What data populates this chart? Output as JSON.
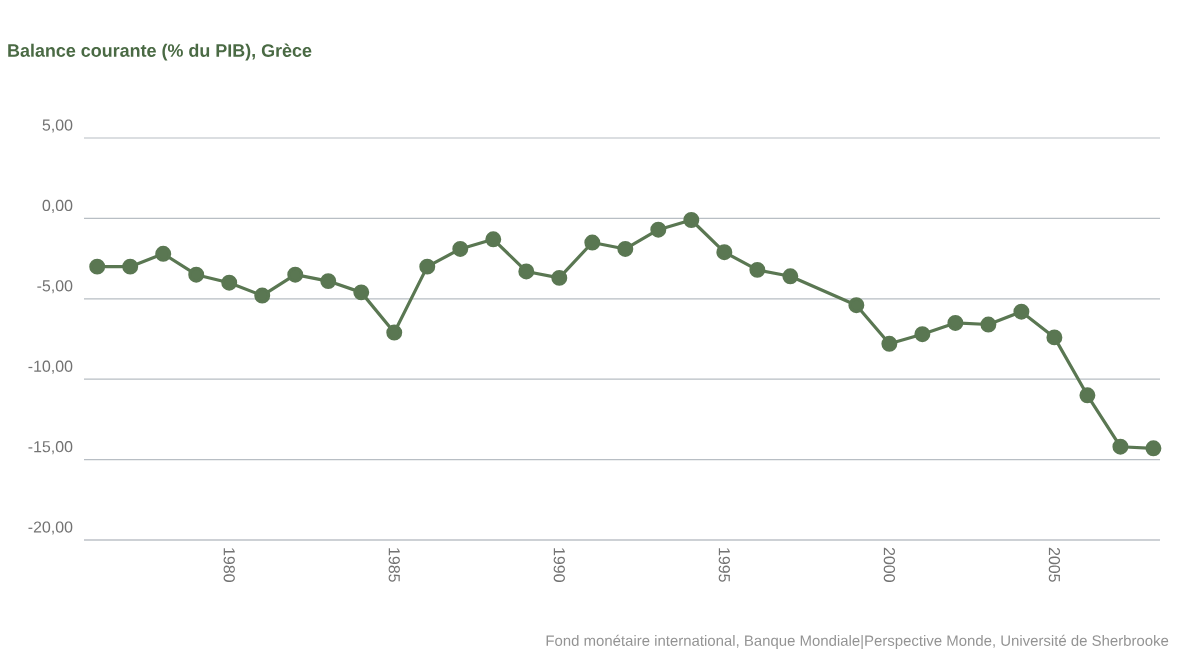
{
  "chart_data": {
    "type": "line",
    "title": "Balance courante (% du PIB), Grèce",
    "annotations": [
      "Fond monétaire international, Banque Mondiale|Perspective Monde, Université de Sherbrooke"
    ],
    "x": [
      1976,
      1977,
      1978,
      1979,
      1980,
      1981,
      1982,
      1983,
      1984,
      1985,
      1986,
      1987,
      1988,
      1989,
      1990,
      1991,
      1992,
      1993,
      1994,
      1995,
      1996,
      1997,
      1999,
      2000,
      2001,
      2002,
      2003,
      2004,
      2005,
      2006,
      2007,
      2008
    ],
    "series": [
      {
        "color": "#5a7752",
        "values": [
          -3.0,
          -3.0,
          -2.2,
          -3.5,
          -4.0,
          -4.8,
          -3.5,
          -3.9,
          -4.6,
          -7.1,
          -3.0,
          -1.9,
          -1.3,
          -3.3,
          -3.7,
          -1.5,
          -1.9,
          -0.7,
          -0.1,
          -2.1,
          -3.2,
          -3.6,
          -5.4,
          -7.8,
          -7.2,
          -6.5,
          -6.6,
          -5.8,
          -7.4,
          -11.0,
          -14.2,
          -14.3
        ]
      }
    ],
    "xlim": [
      1975.6,
      2008.2
    ],
    "ylim": [
      -20,
      5
    ],
    "xticks": [
      1980,
      1985,
      1990,
      1995,
      2000,
      2005
    ],
    "yticks": [
      {
        "value": 5,
        "label": "5,00"
      },
      {
        "value": 0,
        "label": "0,00"
      },
      {
        "value": -5,
        "label": "-5,00"
      },
      {
        "value": -10,
        "label": "-10,00"
      },
      {
        "value": -15,
        "label": "-15,00"
      },
      {
        "value": -20,
        "label": "-20,00"
      }
    ],
    "grid": "y",
    "marker": "circle",
    "line_style": "solid"
  }
}
